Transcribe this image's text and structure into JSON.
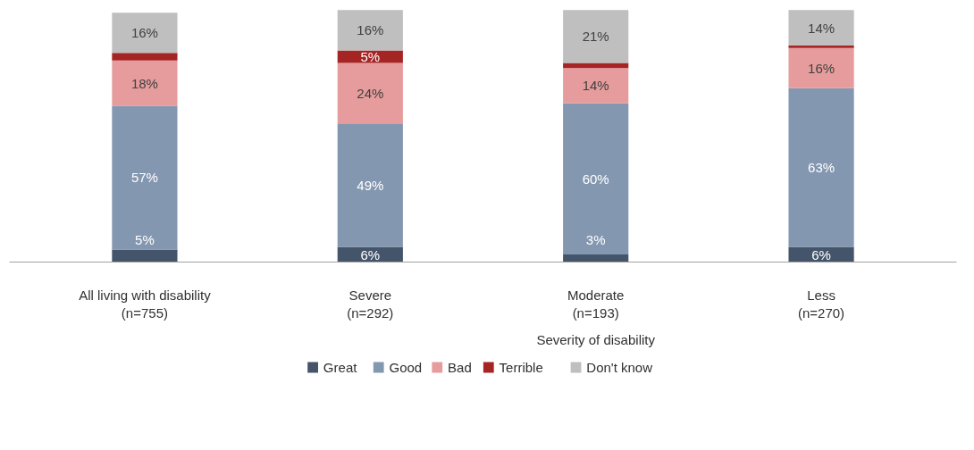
{
  "chart_data": {
    "type": "bar",
    "stacked": true,
    "legend": "bottom",
    "categories": [
      "All living with disability\n(n=755)",
      "Severe\n(n=292)",
      "Moderate\n(n=193)",
      "Less\n(n=270)"
    ],
    "annotations": [
      "Severity of disability"
    ],
    "series": [
      {
        "name": "Great",
        "color": "#44546a",
        "values": [
          5,
          6,
          3,
          6
        ],
        "value_labels": [
          "5%",
          "6%",
          "3%",
          "6%"
        ]
      },
      {
        "name": "Good",
        "color": "#8497b0",
        "values": [
          57,
          49,
          60,
          63
        ],
        "value_labels": [
          "57%",
          "49%",
          "60%",
          "63%"
        ]
      },
      {
        "name": "Bad",
        "color": "#e69c9c",
        "values": [
          18,
          24,
          14,
          16
        ],
        "value_labels": [
          "18%",
          "24%",
          "14%",
          "16%"
        ]
      },
      {
        "name": "Terrible",
        "color": "#a52424",
        "values": [
          3,
          5,
          2,
          1
        ],
        "value_labels": [
          null,
          "5%",
          null,
          null
        ]
      },
      {
        "name": "Don't know",
        "color": "#bfbfbf",
        "values": [
          16,
          16,
          21,
          14
        ],
        "value_labels": [
          "16%",
          "16%",
          "21%",
          "14%"
        ]
      }
    ]
  }
}
